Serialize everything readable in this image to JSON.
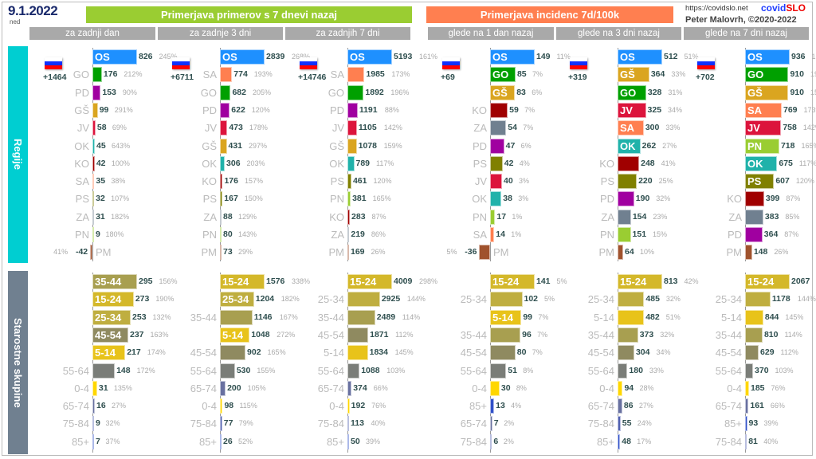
{
  "header": {
    "date": "9.1.2022",
    "weekday": "ned",
    "banner_cases": "Primerjava primerov s 7 dnevi nazaj",
    "banner_incidence": "Primerjava incidenc 7d/100k",
    "url": "https://covidslo.net",
    "brand_a": "covid",
    "brand_b": "SLO",
    "author": "Peter Malovrh, ©2020-2022",
    "columns": [
      "za zadnji dan",
      "za zadnje 3 dni",
      "za zadnjih 7 dni",
      "glede na 1 dan nazaj",
      "glede na 3 dni nazaj",
      "glede na 7 dni nazaj"
    ],
    "colors": {
      "cases": "#9acd32",
      "incidence": "#ff7f50"
    }
  },
  "sections": {
    "regions": "Regije",
    "ages": "Starostne skupine",
    "regions_color": "#00ced1",
    "ages_color": "#708090"
  },
  "colors": {
    "OS": "#1e90ff",
    "GO": "#00a000",
    "PD": "#a000a0",
    "GŠ": "#daa520",
    "JV": "#dc143c",
    "OK": "#20b2aa",
    "KO": "#a00000",
    "SA": "#ff7f50",
    "PS": "#808000",
    "ZA": "#708090",
    "PN": "#9acd32",
    "PM": "#a0522d",
    "0-4": "#ffd700",
    "5-14": "#e8c31a",
    "15-24": "#d4b82a",
    "25-34": "#bfae40",
    "35-44": "#a89f50",
    "45-54": "#8f8a60",
    "55-64": "#7a7d78",
    "65-74": "#6870a0",
    "75-84": "#5060b0",
    "85+": "#3050c8"
  },
  "chart_data": [
    {
      "type": "bar",
      "title": "za zadnji dan",
      "flag_delta": "+1464",
      "regions": [
        [
          "OS",
          826,
          "245%"
        ],
        [
          "GO",
          176,
          "212%"
        ],
        [
          "PD",
          153,
          "90%"
        ],
        [
          "GŠ",
          99,
          "291%"
        ],
        [
          "JV",
          58,
          "69%"
        ],
        [
          "OK",
          45,
          "643%"
        ],
        [
          "KO",
          42,
          "100%"
        ],
        [
          "SA",
          35,
          "38%"
        ],
        [
          "PS",
          32,
          "107%"
        ],
        [
          "ZA",
          31,
          "182%"
        ],
        [
          "PN",
          9,
          "180%"
        ],
        [
          "PM",
          -42,
          "41%"
        ]
      ],
      "ages": [
        [
          "35-44",
          295,
          "156%"
        ],
        [
          "15-24",
          273,
          "190%"
        ],
        [
          "25-34",
          253,
          "132%"
        ],
        [
          "45-54",
          237,
          "163%"
        ],
        [
          "5-14",
          217,
          "174%"
        ],
        [
          "55-64",
          148,
          "172%"
        ],
        [
          "0-4",
          31,
          "135%"
        ],
        [
          "65-74",
          16,
          "27%"
        ],
        [
          "75-84",
          9,
          "32%"
        ],
        [
          "85+",
          7,
          "37%"
        ]
      ]
    },
    {
      "type": "bar",
      "title": "za zadnje 3 dni",
      "flag_delta": "+6711",
      "regions": [
        [
          "OS",
          2839,
          "268%"
        ],
        [
          "SA",
          774,
          "193%"
        ],
        [
          "GO",
          682,
          "205%"
        ],
        [
          "PD",
          622,
          "120%"
        ],
        [
          "JV",
          473,
          "178%"
        ],
        [
          "GŠ",
          431,
          "297%"
        ],
        [
          "OK",
          306,
          "203%"
        ],
        [
          "KO",
          176,
          "157%"
        ],
        [
          "PS",
          167,
          "150%"
        ],
        [
          "ZA",
          88,
          "129%"
        ],
        [
          "PN",
          80,
          "143%"
        ],
        [
          "PM",
          73,
          "29%"
        ]
      ],
      "ages": [
        [
          "15-24",
          1576,
          "338%"
        ],
        [
          "25-34",
          1204,
          "182%"
        ],
        [
          "35-44",
          1146,
          "167%"
        ],
        [
          "5-14",
          1048,
          "272%"
        ],
        [
          "45-54",
          902,
          "165%"
        ],
        [
          "55-64",
          530,
          "155%"
        ],
        [
          "65-74",
          200,
          "105%"
        ],
        [
          "0-4",
          98,
          "115%"
        ],
        [
          "75-84",
          77,
          "79%"
        ],
        [
          "85+",
          26,
          "52%"
        ]
      ]
    },
    {
      "type": "bar",
      "title": "za zadnjih 7 dni",
      "flag_delta": "+14746",
      "regions": [
        [
          "OS",
          5193,
          "161%"
        ],
        [
          "SA",
          1985,
          "173%"
        ],
        [
          "GO",
          1892,
          "196%"
        ],
        [
          "PD",
          1191,
          "88%"
        ],
        [
          "JV",
          1105,
          "142%"
        ],
        [
          "GŠ",
          1078,
          "159%"
        ],
        [
          "OK",
          789,
          "117%"
        ],
        [
          "PS",
          461,
          "120%"
        ],
        [
          "PN",
          381,
          "165%"
        ],
        [
          "KO",
          283,
          "87%"
        ],
        [
          "ZA",
          219,
          "86%"
        ],
        [
          "PM",
          169,
          "26%"
        ]
      ],
      "ages": [
        [
          "15-24",
          4009,
          "298%"
        ],
        [
          "25-34",
          2925,
          "144%"
        ],
        [
          "35-44",
          2489,
          "114%"
        ],
        [
          "45-54",
          1871,
          "112%"
        ],
        [
          "5-14",
          1834,
          "145%"
        ],
        [
          "55-64",
          1088,
          "103%"
        ],
        [
          "65-74",
          374,
          "66%"
        ],
        [
          "0-4",
          192,
          "76%"
        ],
        [
          "75-84",
          113,
          "40%"
        ],
        [
          "85+",
          50,
          "39%"
        ]
      ]
    },
    {
      "type": "bar",
      "title": "glede na 1 dan nazaj",
      "flag_delta": "+69",
      "regions": [
        [
          "OS",
          149,
          "11%"
        ],
        [
          "GO",
          85,
          "7%"
        ],
        [
          "GŠ",
          83,
          "6%"
        ],
        [
          "KO",
          59,
          "7%"
        ],
        [
          "ZA",
          54,
          "7%"
        ],
        [
          "PD",
          47,
          "6%"
        ],
        [
          "PS",
          42,
          "4%"
        ],
        [
          "JV",
          40,
          "3%"
        ],
        [
          "OK",
          38,
          "3%"
        ],
        [
          "PN",
          17,
          "1%"
        ],
        [
          "SA",
          14,
          "1%"
        ],
        [
          "PM",
          -36,
          "5%"
        ]
      ],
      "ages": [
        [
          "15-24",
          141,
          "5%"
        ],
        [
          "25-34",
          102,
          "5%"
        ],
        [
          "5-14",
          99,
          "7%"
        ],
        [
          "35-44",
          96,
          "7%"
        ],
        [
          "45-54",
          80,
          "7%"
        ],
        [
          "55-64",
          51,
          "8%"
        ],
        [
          "0-4",
          30,
          "8%"
        ],
        [
          "85+",
          13,
          "4%"
        ],
        [
          "65-74",
          7,
          "2%"
        ],
        [
          "75-84",
          6,
          "2%"
        ]
      ]
    },
    {
      "type": "bar",
      "title": "glede na 3 dni nazaj",
      "flag_delta": "+319",
      "regions": [
        [
          "OS",
          512,
          "51%"
        ],
        [
          "GŠ",
          364,
          "33%"
        ],
        [
          "GO",
          328,
          "31%"
        ],
        [
          "JV",
          325,
          "34%"
        ],
        [
          "SA",
          300,
          "33%"
        ],
        [
          "OK",
          262,
          "27%"
        ],
        [
          "KO",
          248,
          "41%"
        ],
        [
          "PS",
          220,
          "25%"
        ],
        [
          "PD",
          190,
          "32%"
        ],
        [
          "ZA",
          154,
          "23%"
        ],
        [
          "PN",
          151,
          "15%"
        ],
        [
          "PM",
          64,
          "10%"
        ]
      ],
      "ages": [
        [
          "15-24",
          813,
          "42%"
        ],
        [
          "25-34",
          485,
          "32%"
        ],
        [
          "5-14",
          482,
          "51%"
        ],
        [
          "35-44",
          373,
          "32%"
        ],
        [
          "45-54",
          304,
          "34%"
        ],
        [
          "55-64",
          180,
          "33%"
        ],
        [
          "0-4",
          94,
          "28%"
        ],
        [
          "65-74",
          86,
          "27%"
        ],
        [
          "75-84",
          55,
          "24%"
        ],
        [
          "85+",
          48,
          "17%"
        ]
      ]
    },
    {
      "type": "bar",
      "title": "glede na 7 dni nazaj",
      "flag_delta": "+702",
      "regions": [
        [
          "OS",
          936,
          "161%"
        ],
        [
          "GO",
          910,
          "196%"
        ],
        [
          "GŠ",
          910,
          "159%"
        ],
        [
          "SA",
          769,
          "173%"
        ],
        [
          "JV",
          758,
          "142%"
        ],
        [
          "PN",
          718,
          "165%"
        ],
        [
          "OK",
          675,
          "117%"
        ],
        [
          "PS",
          607,
          "120%"
        ],
        [
          "KO",
          399,
          "87%"
        ],
        [
          "ZA",
          383,
          "85%"
        ],
        [
          "PD",
          364,
          "87%"
        ],
        [
          "PM",
          148,
          "26%"
        ]
      ],
      "ages": [
        [
          "15-24",
          2067,
          "298%"
        ],
        [
          "25-34",
          1178,
          "144%"
        ],
        [
          "5-14",
          844,
          "145%"
        ],
        [
          "35-44",
          810,
          "114%"
        ],
        [
          "45-54",
          629,
          "112%"
        ],
        [
          "55-64",
          370,
          "103%"
        ],
        [
          "0-4",
          185,
          "76%"
        ],
        [
          "65-74",
          161,
          "66%"
        ],
        [
          "85+",
          93,
          "39%"
        ],
        [
          "75-84",
          81,
          "40%"
        ]
      ]
    }
  ]
}
